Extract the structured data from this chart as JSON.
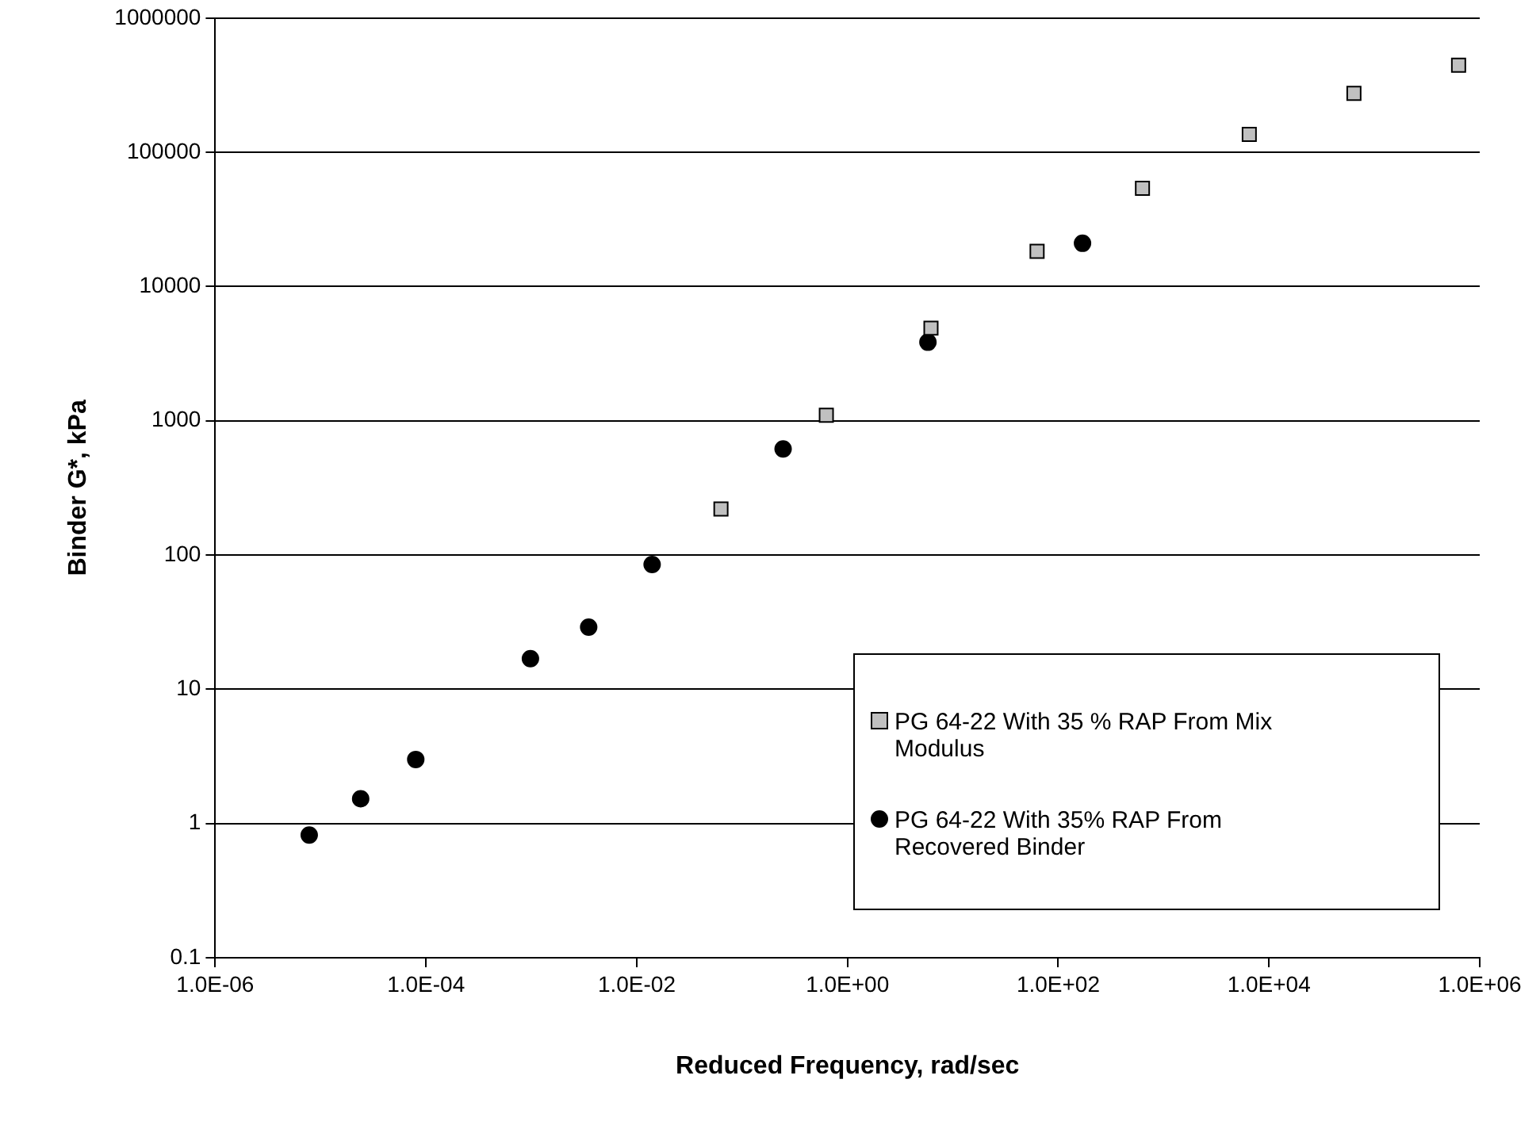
{
  "chart_data": {
    "type": "scatter",
    "xlabel": "Reduced Frequency, rad/sec",
    "ylabel": "Binder G*, kPa",
    "log": "xy",
    "grid": "y",
    "legend": "bottom right",
    "xlim": [
      1e-06,
      1000000
    ],
    "ylim": [
      0.1,
      1000000
    ],
    "xticks": [
      {
        "value": 1e-06,
        "label": "1.0E-06"
      },
      {
        "value": 0.0001,
        "label": "1.0E-04"
      },
      {
        "value": 0.01,
        "label": "1.0E-02"
      },
      {
        "value": 1,
        "label": "1.0E+00"
      },
      {
        "value": 100,
        "label": "1.0E+02"
      },
      {
        "value": 10000,
        "label": "1.0E+04"
      },
      {
        "value": 1000000,
        "label": "1.0E+06"
      }
    ],
    "yticks": [
      0.1,
      1,
      10,
      100,
      1000,
      10000,
      100000,
      1000000
    ],
    "series": [
      {
        "name": "PG 64-22 With 35 % RAP From Mix Modulus",
        "color": "#c0c0c0",
        "marker": "square",
        "x": [
          0.063,
          0.63,
          6.2,
          63,
          630,
          6500,
          64000,
          630000
        ],
        "values": [
          220,
          1100,
          4900,
          18300,
          54000,
          136000,
          275000,
          446000
        ]
      },
      {
        "name": "PG 64-22 With 35% RAP From Recovered Binder",
        "color": "#000000",
        "marker": "circle",
        "x": [
          7.8e-06,
          2.4e-05,
          8e-05,
          0.00098,
          0.0035,
          0.014,
          0.245,
          5.8,
          170
        ],
        "values": [
          0.82,
          1.53,
          3.0,
          16.9,
          29,
          85,
          617,
          3850,
          21000
        ]
      }
    ]
  }
}
